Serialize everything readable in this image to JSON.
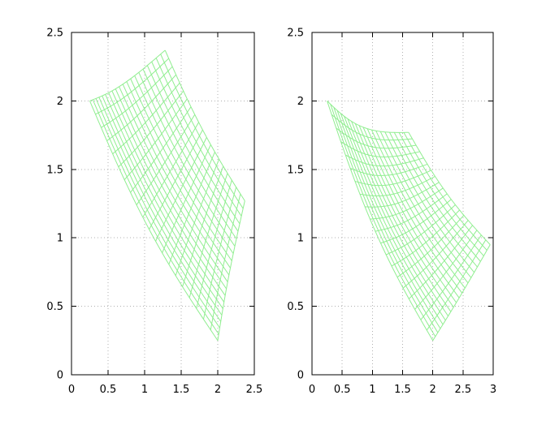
{
  "chart_data": [
    {
      "type": "line",
      "title": "",
      "xlabel": "",
      "ylabel": "",
      "xlim": [
        0,
        2.5
      ],
      "ylim": [
        0,
        2.5
      ],
      "xticks": [
        0,
        0.5,
        1,
        1.5,
        2,
        2.5
      ],
      "xtick_labels": [
        "0",
        "0.5",
        "1",
        "1.5",
        "2",
        "2.5"
      ],
      "yticks": [
        0,
        0.5,
        1,
        1.5,
        2,
        2.5
      ],
      "ytick_labels": [
        "0",
        "0.5",
        "1",
        "1.5",
        "2",
        "2.5"
      ],
      "grid": true,
      "line_color": "#90ee90",
      "mesh": {
        "rows": 21,
        "cols": 21,
        "corners": {
          "top_left": [
            0.25,
            2.0
          ],
          "top_right": [
            1.28,
            2.37
          ],
          "right_top": [
            2.37,
            1.27
          ],
          "bottom_right": [
            2.0,
            0.25
          ]
        },
        "description": "curvilinear grid, concave sides"
      }
    },
    {
      "type": "line",
      "title": "",
      "xlabel": "",
      "ylabel": "",
      "xlim": [
        0,
        3
      ],
      "ylim": [
        0,
        2.5
      ],
      "xticks": [
        0,
        0.5,
        1,
        1.5,
        2,
        2.5,
        3
      ],
      "xtick_labels": [
        "0",
        "0.5",
        "1",
        "1.5",
        "2",
        "2.5",
        "3"
      ],
      "yticks": [
        0,
        0.5,
        1,
        1.5,
        2,
        2.5
      ],
      "ytick_labels": [
        "0",
        "0.5",
        "1",
        "1.5",
        "2",
        "2.5"
      ],
      "grid": true,
      "line_color": "#90ee90",
      "mesh": {
        "rows": 21,
        "cols": 21,
        "corners": {
          "top_left": [
            0.25,
            2.0
          ],
          "top_right": [
            1.6,
            1.77
          ],
          "right_top": [
            2.95,
            0.95
          ],
          "bottom_right": [
            2.0,
            0.25
          ]
        },
        "description": "curvilinear grid, concave sides"
      }
    }
  ]
}
